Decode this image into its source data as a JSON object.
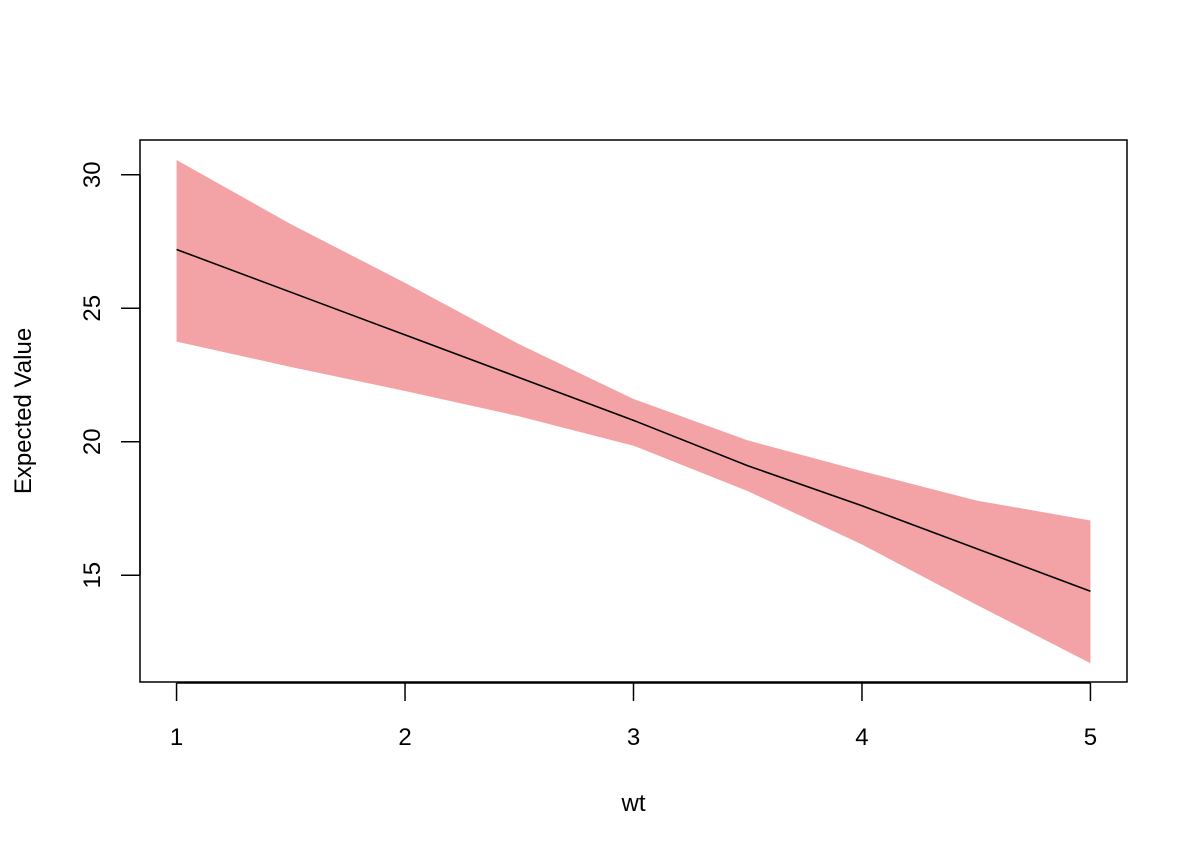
{
  "chart_data": {
    "type": "line",
    "xlabel": "wt",
    "ylabel": "Expected Value",
    "xlim": [
      0.84,
      5.16
    ],
    "ylim": [
      11.0,
      31.3
    ],
    "x_ticks": [
      1,
      2,
      3,
      4,
      5
    ],
    "y_ticks": [
      15,
      20,
      25,
      30
    ],
    "grid": false,
    "series": [
      {
        "values": [
          {
            "x": 1.0,
            "y": 27.2
          },
          {
            "x": 1.5,
            "y": 25.6
          },
          {
            "x": 2.0,
            "y": 24.0
          },
          {
            "x": 2.5,
            "y": 22.4
          },
          {
            "x": 3.0,
            "y": 20.8
          },
          {
            "x": 3.5,
            "y": 19.1
          },
          {
            "x": 4.0,
            "y": 17.6
          },
          {
            "x": 4.5,
            "y": 16.0
          },
          {
            "x": 5.0,
            "y": 14.4
          }
        ]
      }
    ],
    "confidence_band": {
      "x": [
        1.0,
        1.5,
        2.0,
        2.5,
        3.0,
        3.5,
        4.0,
        4.5,
        5.0
      ],
      "lower": [
        23.75,
        22.8,
        21.9,
        20.95,
        19.85,
        18.15,
        16.15,
        13.9,
        11.7
      ],
      "upper": [
        30.55,
        28.15,
        25.95,
        23.65,
        21.6,
        20.05,
        18.9,
        17.8,
        17.05
      ]
    },
    "colors": {
      "line": "#000000",
      "band": "#f3a3a5",
      "axis": "#000000"
    }
  }
}
